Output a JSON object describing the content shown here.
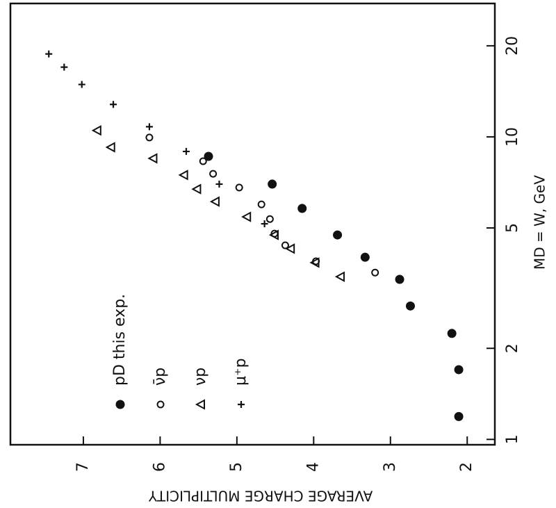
{
  "chart_data": {
    "type": "scatter",
    "xlabel": "MD = W, GeV",
    "ylabel": "AVERAGE CHARGE MULTIPLICITY",
    "xscale": "log",
    "xlim": [
      0.96,
      27.6
    ],
    "xticks": [
      1,
      2,
      5,
      10,
      20
    ],
    "ylim": [
      1.64,
      7.95
    ],
    "yticks": [
      2,
      3,
      4,
      5,
      6,
      7
    ],
    "series": [
      {
        "name": "pD  this exp.",
        "marker": "filled-circle",
        "color": "#000000",
        "x": [
          1.19,
          1.7,
          2.24,
          2.76,
          3.38,
          4.0,
          4.74,
          5.8,
          6.98,
          8.62
        ],
        "values": [
          2.11,
          2.11,
          2.2,
          2.74,
          2.88,
          3.33,
          3.69,
          4.15,
          4.54,
          5.37
        ]
      },
      {
        "name": "ν̄p",
        "marker": "open-circle",
        "color": "#000000",
        "x": [
          3.56,
          3.88,
          4.38,
          4.79,
          5.35,
          5.98,
          6.8,
          7.55,
          8.31,
          9.95
        ],
        "values": [
          3.2,
          3.97,
          4.37,
          4.51,
          4.57,
          4.68,
          4.97,
          5.31,
          5.44,
          6.14
        ]
      },
      {
        "name": "νp",
        "marker": "triangle",
        "color": "#000000",
        "x": [
          3.45,
          3.84,
          4.27,
          4.74,
          5.44,
          6.11,
          6.72,
          7.48,
          8.49,
          9.24,
          10.5
        ],
        "values": [
          3.65,
          3.98,
          4.3,
          4.51,
          4.87,
          5.28,
          5.52,
          5.69,
          6.09,
          6.64,
          6.82
        ]
      },
      {
        "name": "μ⁺p",
        "marker": "cross",
        "color": "#000000",
        "x": [
          5.16,
          6.98,
          8.95,
          10.8,
          12.8,
          14.9,
          17.0,
          18.8
        ],
        "values": [
          4.64,
          5.23,
          5.66,
          6.14,
          6.61,
          7.02,
          7.25,
          7.45
        ]
      }
    ]
  }
}
